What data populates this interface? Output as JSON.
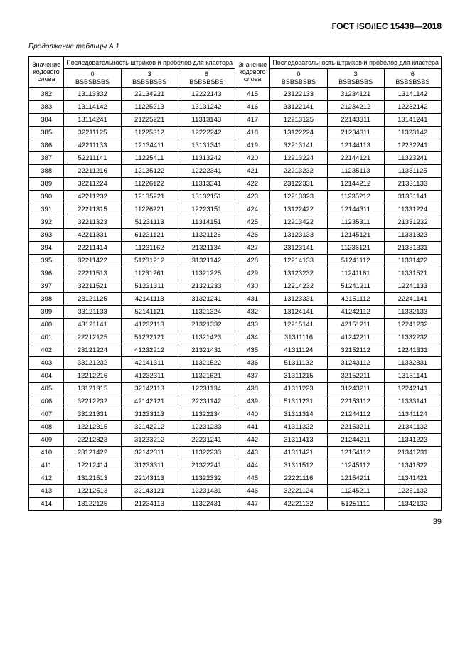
{
  "header": "ГОСТ ISO/IEC 15438—2018",
  "continuation": "Продолжение таблицы А.1",
  "columns": {
    "value_header": "Значение кодового слова",
    "group_header": "Последовательность штрихов и пробелов для кластера",
    "sub0_top": "0",
    "sub3_top": "3",
    "sub6_top": "6",
    "sub_bottom": "BSBSBSBS"
  },
  "rows": [
    {
      "l": "382",
      "l0": "13113332",
      "l3": "22134221",
      "l6": "12222143",
      "r": "415",
      "r0": "23122133",
      "r3": "31234121",
      "r6": "13141142"
    },
    {
      "l": "383",
      "l0": "13114142",
      "l3": "11225213",
      "l6": "13131242",
      "r": "416",
      "r0": "33122141",
      "r3": "21234212",
      "r6": "12232142"
    },
    {
      "l": "384",
      "l0": "13114241",
      "l3": "21225221",
      "l6": "11313143",
      "r": "417",
      "r0": "12213125",
      "r3": "22143311",
      "r6": "13141241"
    },
    {
      "l": "385",
      "l0": "32211125",
      "l3": "11225312",
      "l6": "12222242",
      "r": "418",
      "r0": "13122224",
      "r3": "21234311",
      "r6": "11323142"
    },
    {
      "l": "386",
      "l0": "42211133",
      "l3": "12134411",
      "l6": "13131341",
      "r": "419",
      "r0": "32213141",
      "r3": "12144113",
      "r6": "12232241"
    },
    {
      "l": "387",
      "l0": "52211141",
      "l3": "11225411",
      "l6": "11313242",
      "r": "420",
      "r0": "12213224",
      "r3": "22144121",
      "r6": "11323241"
    },
    {
      "l": "388",
      "l0": "22211216",
      "l3": "12135122",
      "l6": "12222341",
      "r": "421",
      "r0": "22213232",
      "r3": "11235113",
      "r6": "11331125"
    },
    {
      "l": "389",
      "l0": "32211224",
      "l3": "11226122",
      "l6": "11313341",
      "r": "422",
      "r0": "23122331",
      "r3": "12144212",
      "r6": "21331133"
    },
    {
      "l": "390",
      "l0": "42211232",
      "l3": "12135221",
      "l6": "13132151",
      "r": "423",
      "r0": "12213323",
      "r3": "11235212",
      "r6": "31331141"
    },
    {
      "l": "391",
      "l0": "22211315",
      "l3": "11226221",
      "l6": "12223151",
      "r": "424",
      "r0": "13122422",
      "r3": "12144311",
      "r6": "11331224"
    },
    {
      "l": "392",
      "l0": "32211323",
      "l3": "51231113",
      "l6": "11314151",
      "r": "425",
      "r0": "12213422",
      "r3": "11235311",
      "r6": "21331232"
    },
    {
      "l": "393",
      "l0": "42211331",
      "l3": "61231121",
      "l6": "11321126",
      "r": "426",
      "r0": "13123133",
      "r3": "12145121",
      "r6": "11331323"
    },
    {
      "l": "394",
      "l0": "22211414",
      "l3": "11231162",
      "l6": "21321134",
      "r": "427",
      "r0": "23123141",
      "r3": "11236121",
      "r6": "21331331"
    },
    {
      "l": "395",
      "l0": "32211422",
      "l3": "51231212",
      "l6": "31321142",
      "r": "428",
      "r0": "12214133",
      "r3": "51241112",
      "r6": "11331422"
    },
    {
      "l": "396",
      "l0": "22211513",
      "l3": "11231261",
      "l6": "11321225",
      "r": "429",
      "r0": "13123232",
      "r3": "11241161",
      "r6": "11331521"
    },
    {
      "l": "397",
      "l0": "32211521",
      "l3": "51231311",
      "l6": "21321233",
      "r": "430",
      "r0": "12214232",
      "r3": "51241211",
      "r6": "12241133"
    },
    {
      "l": "398",
      "l0": "23121125",
      "l3": "42141113",
      "l6": "31321241",
      "r": "431",
      "r0": "13123331",
      "r3": "42151112",
      "r6": "22241141"
    },
    {
      "l": "399",
      "l0": "33121133",
      "l3": "52141121",
      "l6": "11321324",
      "r": "432",
      "r0": "13124141",
      "r3": "41242112",
      "r6": "11332133"
    },
    {
      "l": "400",
      "l0": "43121141",
      "l3": "41232113",
      "l6": "21321332",
      "r": "433",
      "r0": "12215141",
      "r3": "42151211",
      "r6": "12241232"
    },
    {
      "l": "401",
      "l0": "22212125",
      "l3": "51232121",
      "l6": "11321423",
      "r": "434",
      "r0": "31311116",
      "r3": "41242211",
      "r6": "11332232"
    },
    {
      "l": "402",
      "l0": "23121224",
      "l3": "41232212",
      "l6": "21321431",
      "r": "435",
      "r0": "41311124",
      "r3": "32152112",
      "r6": "12241331"
    },
    {
      "l": "403",
      "l0": "33121232",
      "l3": "42141311",
      "l6": "11321522",
      "r": "436",
      "r0": "51311132",
      "r3": "31243112",
      "r6": "11332331"
    },
    {
      "l": "404",
      "l0": "12212216",
      "l3": "41232311",
      "l6": "11321621",
      "r": "437",
      "r0": "31311215",
      "r3": "32152211",
      "r6": "13151141"
    },
    {
      "l": "405",
      "l0": "13121315",
      "l3": "32142113",
      "l6": "12231134",
      "r": "438",
      "r0": "41311223",
      "r3": "31243211",
      "r6": "12242141"
    },
    {
      "l": "406",
      "l0": "32212232",
      "l3": "42142121",
      "l6": "22231142",
      "r": "439",
      "r0": "51311231",
      "r3": "22153112",
      "r6": "11333141"
    },
    {
      "l": "407",
      "l0": "33121331",
      "l3": "31233113",
      "l6": "11322134",
      "r": "440",
      "r0": "31311314",
      "r3": "21244112",
      "r6": "11341124"
    },
    {
      "l": "408",
      "l0": "12212315",
      "l3": "32142212",
      "l6": "12231233",
      "r": "441",
      "r0": "41311322",
      "r3": "22153211",
      "r6": "21341132"
    },
    {
      "l": "409",
      "l0": "22212323",
      "l3": "31233212",
      "l6": "22231241",
      "r": "442",
      "r0": "31311413",
      "r3": "21244211",
      "r6": "11341223"
    },
    {
      "l": "410",
      "l0": "23121422",
      "l3": "32142311",
      "l6": "11322233",
      "r": "443",
      "r0": "41311421",
      "r3": "12154112",
      "r6": "21341231"
    },
    {
      "l": "411",
      "l0": "12212414",
      "l3": "31233311",
      "l6": "21322241",
      "r": "444",
      "r0": "31311512",
      "r3": "11245112",
      "r6": "11341322"
    },
    {
      "l": "412",
      "l0": "13121513",
      "l3": "22143113",
      "l6": "11322332",
      "r": "445",
      "r0": "22221116",
      "r3": "12154211",
      "r6": "11341421"
    },
    {
      "l": "413",
      "l0": "12212513",
      "l3": "32143121",
      "l6": "12231431",
      "r": "446",
      "r0": "32221124",
      "r3": "11245211",
      "r6": "12251132"
    },
    {
      "l": "414",
      "l0": "13122125",
      "l3": "21234113",
      "l6": "11322431",
      "r": "447",
      "r0": "42221132",
      "r3": "51251111",
      "r6": "11342132"
    }
  ],
  "page_number": "39"
}
